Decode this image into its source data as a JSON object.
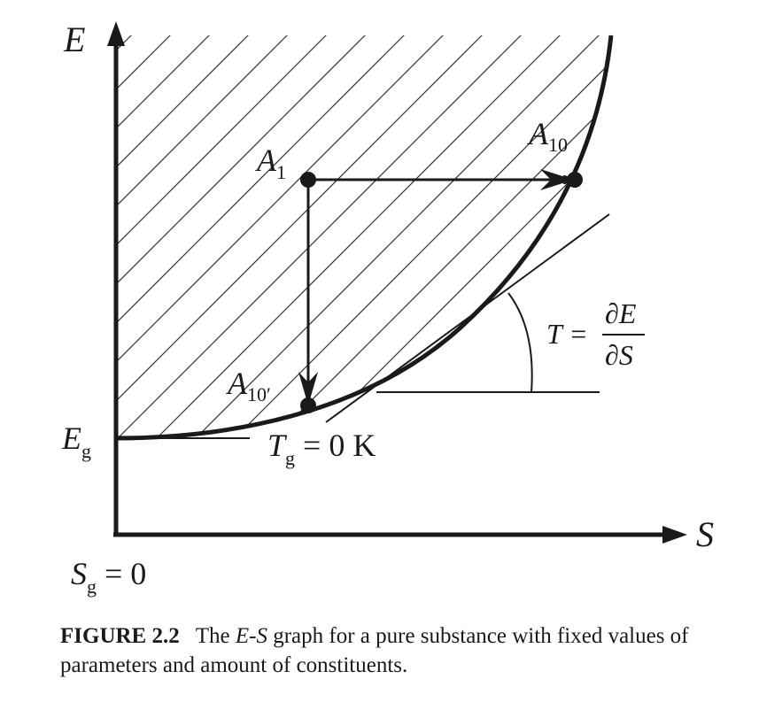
{
  "figure": {
    "axes": {
      "y_label": "E",
      "x_label": "S",
      "y_intercept_label": "E",
      "y_intercept_sub": "g",
      "origin_label": "S",
      "origin_label_sub": "g",
      "origin_label_tail": " = 0"
    },
    "points": {
      "a1": {
        "name": "A",
        "sub": "1"
      },
      "a10": {
        "name": "A",
        "sub": "10"
      },
      "a10p": {
        "name": "A",
        "sub": "10′"
      }
    },
    "ground_temp": {
      "name": "T",
      "sub": "g",
      "tail": " = 0 K"
    },
    "slope_label": {
      "lhs": "T = ",
      "numerator": "∂E",
      "denominator": "∂S"
    }
  },
  "caption": {
    "number": "FIGURE 2.2",
    "text_before": "The ",
    "text_italic_1": "E",
    "text_dash": "-",
    "text_italic_2": "S",
    "text_after": " graph for a pure substance with fixed values of parameters and amount of constituents."
  }
}
